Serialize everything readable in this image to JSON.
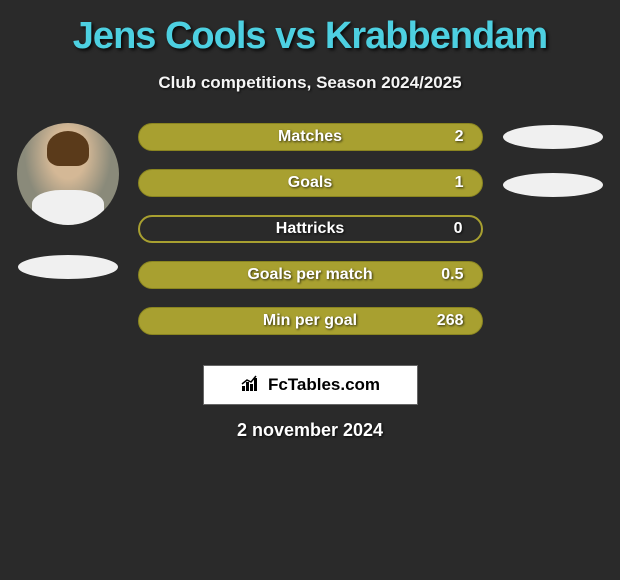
{
  "title": "Jens Cools vs Krabbendam",
  "subtitle": "Club competitions, Season 2024/2025",
  "colors": {
    "title_color": "#4dd0e1",
    "background": "#2a2a2a",
    "bar_olive": "#a8a030",
    "bar_border": "#8a8520",
    "ellipse_white": "#f0f0f0",
    "text_white": "#ffffff"
  },
  "stats": [
    {
      "label": "Matches",
      "value": "2",
      "fill": "full"
    },
    {
      "label": "Goals",
      "value": "1",
      "fill": "full"
    },
    {
      "label": "Hattricks",
      "value": "0",
      "fill": "outline"
    },
    {
      "label": "Goals per match",
      "value": "0.5",
      "fill": "full"
    },
    {
      "label": "Min per goal",
      "value": "268",
      "fill": "full"
    }
  ],
  "right_ellipses_count": 2,
  "brand": {
    "text": "FcTables.com",
    "icon": "chart-bars-icon"
  },
  "date": "2 november 2024"
}
